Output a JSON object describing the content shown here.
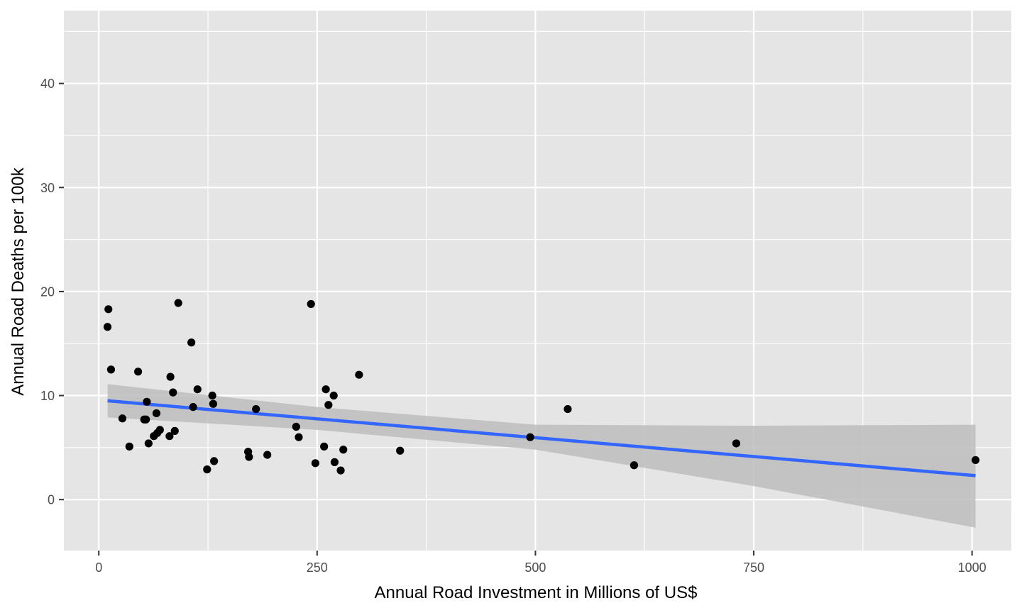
{
  "chart_data": {
    "type": "scatter",
    "title": "",
    "xlabel": "Annual Road Investment in Millions of US$",
    "ylabel": "Annual Road Deaths per 100k",
    "xlim": [
      -40,
      1045
    ],
    "ylim": [
      -4.9,
      47
    ],
    "x_ticks": [
      0,
      250,
      500,
      750,
      1000
    ],
    "x_tick_labels": [
      "0",
      "250",
      "500",
      "750",
      "1000"
    ],
    "y_ticks": [
      0,
      10,
      20,
      30,
      40
    ],
    "y_tick_labels": [
      "0",
      "10",
      "20",
      "30",
      "40"
    ],
    "grid": true,
    "legend": "none",
    "colors": {
      "panel": "#e5e5e5",
      "grid": "#ffffff",
      "point": "#000000",
      "line": "#3366ff",
      "ribbon": "#bdbdbd"
    },
    "points": [
      {
        "x": 10,
        "y": 16.6
      },
      {
        "x": 11,
        "y": 18.3
      },
      {
        "x": 14,
        "y": 12.5
      },
      {
        "x": 27,
        "y": 7.8
      },
      {
        "x": 35,
        "y": 5.1
      },
      {
        "x": 45,
        "y": 12.3
      },
      {
        "x": 52,
        "y": 7.7
      },
      {
        "x": 54,
        "y": 7.7
      },
      {
        "x": 55,
        "y": 9.4
      },
      {
        "x": 57,
        "y": 5.4
      },
      {
        "x": 63,
        "y": 6.1
      },
      {
        "x": 66,
        "y": 8.3
      },
      {
        "x": 67,
        "y": 6.4
      },
      {
        "x": 70,
        "y": 6.7
      },
      {
        "x": 81,
        "y": 6.1
      },
      {
        "x": 82,
        "y": 11.8
      },
      {
        "x": 85,
        "y": 10.3
      },
      {
        "x": 87,
        "y": 6.6
      },
      {
        "x": 91,
        "y": 18.9
      },
      {
        "x": 106,
        "y": 15.1
      },
      {
        "x": 108,
        "y": 8.9
      },
      {
        "x": 113,
        "y": 10.6
      },
      {
        "x": 124,
        "y": 2.9
      },
      {
        "x": 130,
        "y": 10.0
      },
      {
        "x": 131,
        "y": 9.2
      },
      {
        "x": 132,
        "y": 3.7
      },
      {
        "x": 171,
        "y": 4.6
      },
      {
        "x": 172,
        "y": 4.1
      },
      {
        "x": 180,
        "y": 8.7
      },
      {
        "x": 193,
        "y": 4.3
      },
      {
        "x": 226,
        "y": 7.0
      },
      {
        "x": 229,
        "y": 6.0
      },
      {
        "x": 243,
        "y": 18.8
      },
      {
        "x": 248,
        "y": 3.5
      },
      {
        "x": 258,
        "y": 5.1
      },
      {
        "x": 260,
        "y": 10.6
      },
      {
        "x": 263,
        "y": 9.1
      },
      {
        "x": 269,
        "y": 10.0
      },
      {
        "x": 270,
        "y": 3.6
      },
      {
        "x": 277,
        "y": 2.8
      },
      {
        "x": 280,
        "y": 4.8
      },
      {
        "x": 298,
        "y": 12.0
      },
      {
        "x": 345,
        "y": 4.7
      },
      {
        "x": 494,
        "y": 6.0
      },
      {
        "x": 537,
        "y": 8.7
      },
      {
        "x": 613,
        "y": 3.3
      },
      {
        "x": 730,
        "y": 5.4
      },
      {
        "x": 1004,
        "y": 3.8
      }
    ],
    "trend_line": {
      "method": "linear",
      "x": [
        10,
        1004
      ],
      "y": [
        9.5,
        2.3
      ]
    },
    "confidence_band": {
      "x": [
        10,
        250,
        500,
        750,
        1004
      ],
      "lower": [
        7.9,
        6.7,
        4.8,
        1.3,
        -2.7
      ],
      "upper": [
        11.1,
        8.9,
        7.2,
        7.1,
        7.2
      ]
    }
  }
}
